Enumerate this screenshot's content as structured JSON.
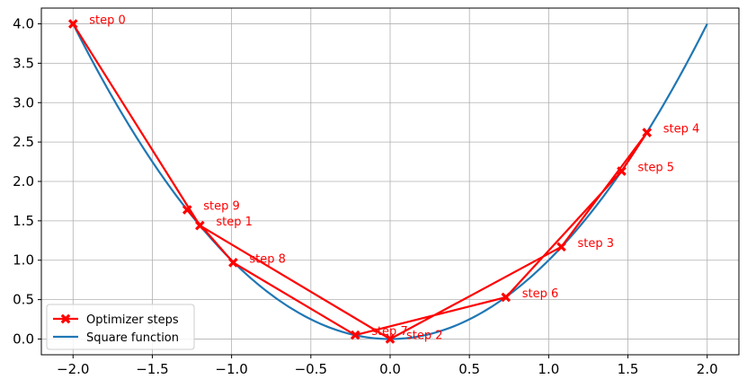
{
  "chart_data": {
    "type": "line",
    "xlim": [
      -2.2,
      2.2
    ],
    "ylim": [
      -0.2,
      4.2
    ],
    "grid": true,
    "legend_placement": "lower-left",
    "x_ticks": [
      -2.0,
      -1.5,
      -1.0,
      -0.5,
      0.0,
      0.5,
      1.0,
      1.5,
      2.0
    ],
    "x_tick_labels": [
      "−2.0",
      "−1.5",
      "−1.0",
      "−0.5",
      "0.0",
      "0.5",
      "1.0",
      "1.5",
      "2.0"
    ],
    "y_ticks": [
      0.0,
      0.5,
      1.0,
      1.5,
      2.0,
      2.5,
      3.0,
      3.5,
      4.0
    ],
    "y_tick_labels": [
      "0.0",
      "0.5",
      "1.0",
      "1.5",
      "2.0",
      "2.5",
      "3.0",
      "3.5",
      "4.0"
    ],
    "series": [
      {
        "name": "Optimizer steps",
        "color": "#ff0000",
        "marker": "X",
        "x": [
          -2.0,
          -1.2,
          0.0,
          1.08,
          1.62,
          1.46,
          0.73,
          -0.22,
          -0.99,
          -1.28
        ],
        "y": [
          4.0,
          1.44,
          0.0,
          1.17,
          2.62,
          2.13,
          0.53,
          0.05,
          0.97,
          1.64
        ],
        "labels": [
          "step 0",
          "step 1",
          "step 2",
          "step 3",
          "step 4",
          "step 5",
          "step 6",
          "step 7",
          "step 8",
          "step 9"
        ]
      },
      {
        "name": "Square function",
        "color": "#1f77b4",
        "function": "x^2",
        "x_range": [
          -2.0,
          2.0
        ]
      }
    ]
  }
}
